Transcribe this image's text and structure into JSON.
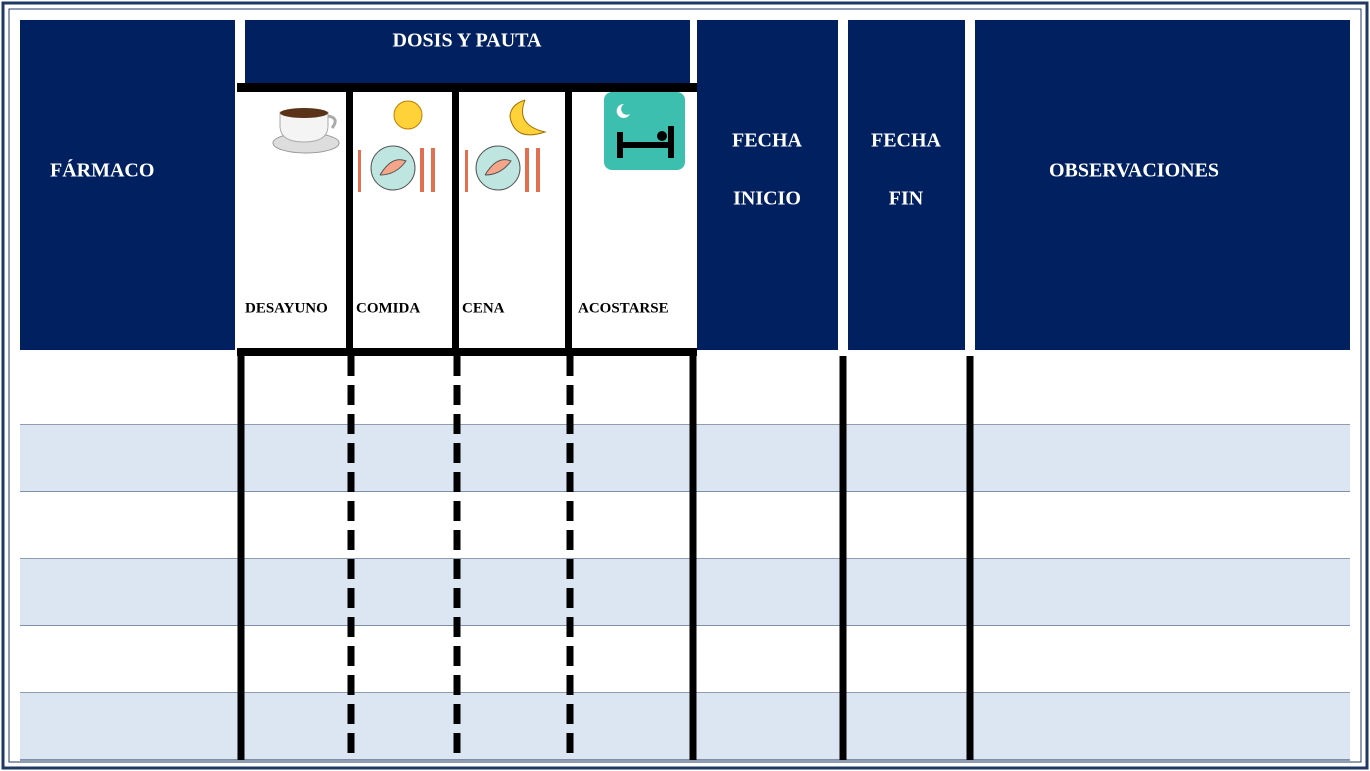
{
  "header": {
    "farmaco": "FÁRMACO",
    "dosis_y_pauta": "DOSIS Y PAUTA",
    "tomas": [
      "DESAYUNO",
      "COMIDA",
      "CENA",
      "ACOSTARSE"
    ],
    "fecha_inicio": [
      "FECHA",
      "INICIO"
    ],
    "fecha_fin": [
      "FECHA",
      "FIN"
    ],
    "observaciones": "OBSERVACIONES"
  }
}
